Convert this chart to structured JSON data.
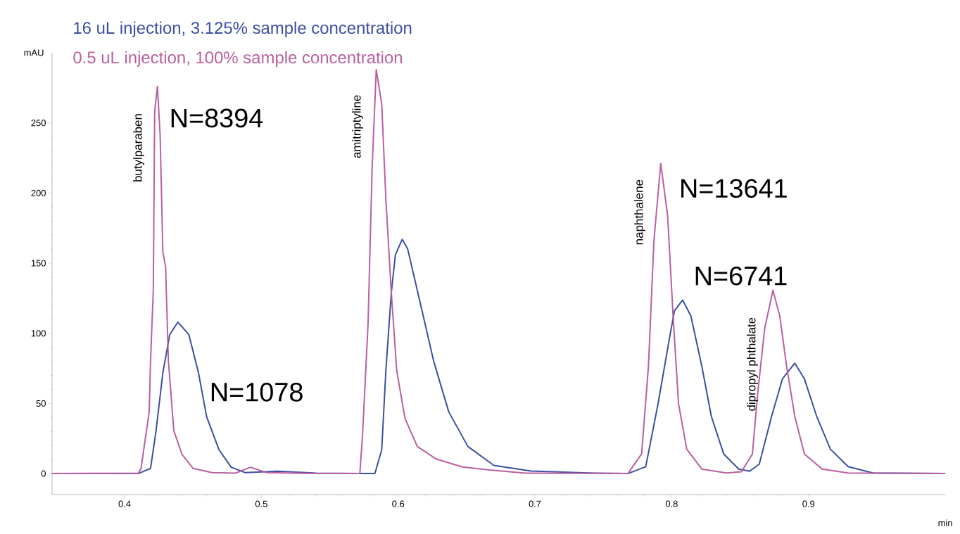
{
  "chart_data": {
    "type": "line",
    "xlabel": "min",
    "ylabel": "mAU",
    "xlim": [
      0.347,
      1.0
    ],
    "ylim": [
      -15,
      300
    ],
    "xticks": [
      0.4,
      0.5,
      0.6,
      0.7,
      0.8,
      0.9
    ],
    "yticks": [
      0,
      50,
      100,
      150,
      200,
      250
    ],
    "legend": "top left",
    "series": [
      {
        "name": "16 uL injection, 3.125% sample concentration",
        "color": "#3c4fa3",
        "x": [
          0.347,
          0.41,
          0.419,
          0.423,
          0.428,
          0.433,
          0.439,
          0.447,
          0.454,
          0.46,
          0.469,
          0.478,
          0.488,
          0.512,
          0.54,
          0.583,
          0.588,
          0.591,
          0.595,
          0.598,
          0.603,
          0.607,
          0.617,
          0.626,
          0.637,
          0.651,
          0.67,
          0.697,
          0.743,
          0.768,
          0.781,
          0.79,
          0.798,
          0.802,
          0.808,
          0.814,
          0.822,
          0.829,
          0.838,
          0.849,
          0.857,
          0.864,
          0.873,
          0.881,
          0.89,
          0.897,
          0.906,
          0.916,
          0.929,
          0.947,
          1.0
        ],
        "values": [
          0,
          0,
          3.7,
          30.5,
          72,
          99,
          108,
          99,
          72,
          40.5,
          17,
          4.5,
          0.7,
          1.7,
          0.3,
          0,
          17,
          73,
          129,
          156,
          167,
          160,
          118,
          80,
          44,
          19.3,
          5.8,
          1.8,
          0.3,
          0,
          4.9,
          49.7,
          94.5,
          116,
          123.7,
          112.4,
          76.6,
          40.7,
          14,
          3.2,
          1.7,
          6.7,
          40.7,
          67.6,
          78.7,
          67.6,
          40.7,
          17.4,
          4.9,
          0.4,
          0
        ]
      },
      {
        "name": "0.5 uL injection, 100% sample concentration",
        "color": "#b9609f",
        "x": [
          0.347,
          0.41,
          0.412,
          0.418,
          0.419,
          0.421,
          0.422,
          0.424,
          0.426,
          0.428,
          0.43,
          0.432,
          0.436,
          0.442,
          0.45,
          0.464,
          0.481,
          0.492,
          0.504,
          0.54,
          0.572,
          0.574,
          0.578,
          0.581,
          0.584,
          0.588,
          0.591,
          0.595,
          0.599,
          0.605,
          0.614,
          0.628,
          0.647,
          0.667,
          0.693,
          0.768,
          0.778,
          0.783,
          0.787,
          0.792,
          0.797,
          0.801,
          0.805,
          0.811,
          0.822,
          0.84,
          0.851,
          0.859,
          0.863,
          0.868,
          0.874,
          0.879,
          0.884,
          0.89,
          0.897,
          0.91,
          0.929,
          1.0
        ],
        "values": [
          0,
          0.3,
          3.5,
          44,
          80.7,
          131,
          258,
          276,
          241,
          157.6,
          147.6,
          80.7,
          30.6,
          13.7,
          3.7,
          0.7,
          0.3,
          4.5,
          0.7,
          0,
          0,
          28,
          106.6,
          218.6,
          288,
          263.5,
          196.3,
          129,
          73,
          39.4,
          19.3,
          10.3,
          4.7,
          2.5,
          0.3,
          0,
          14,
          76.6,
          166,
          221,
          184,
          112.6,
          49.7,
          17.4,
          3.2,
          0.4,
          1.3,
          14,
          58.7,
          103.5,
          130.7,
          112.4,
          76.6,
          40.7,
          14,
          3.2,
          0.4,
          0
        ]
      }
    ],
    "annotations": [
      "butylparaben",
      "amitriptyline",
      "naphthalene",
      "dipropyl phthalate",
      "N=8394",
      "N=1078",
      "N=13641",
      "N=6741"
    ]
  }
}
